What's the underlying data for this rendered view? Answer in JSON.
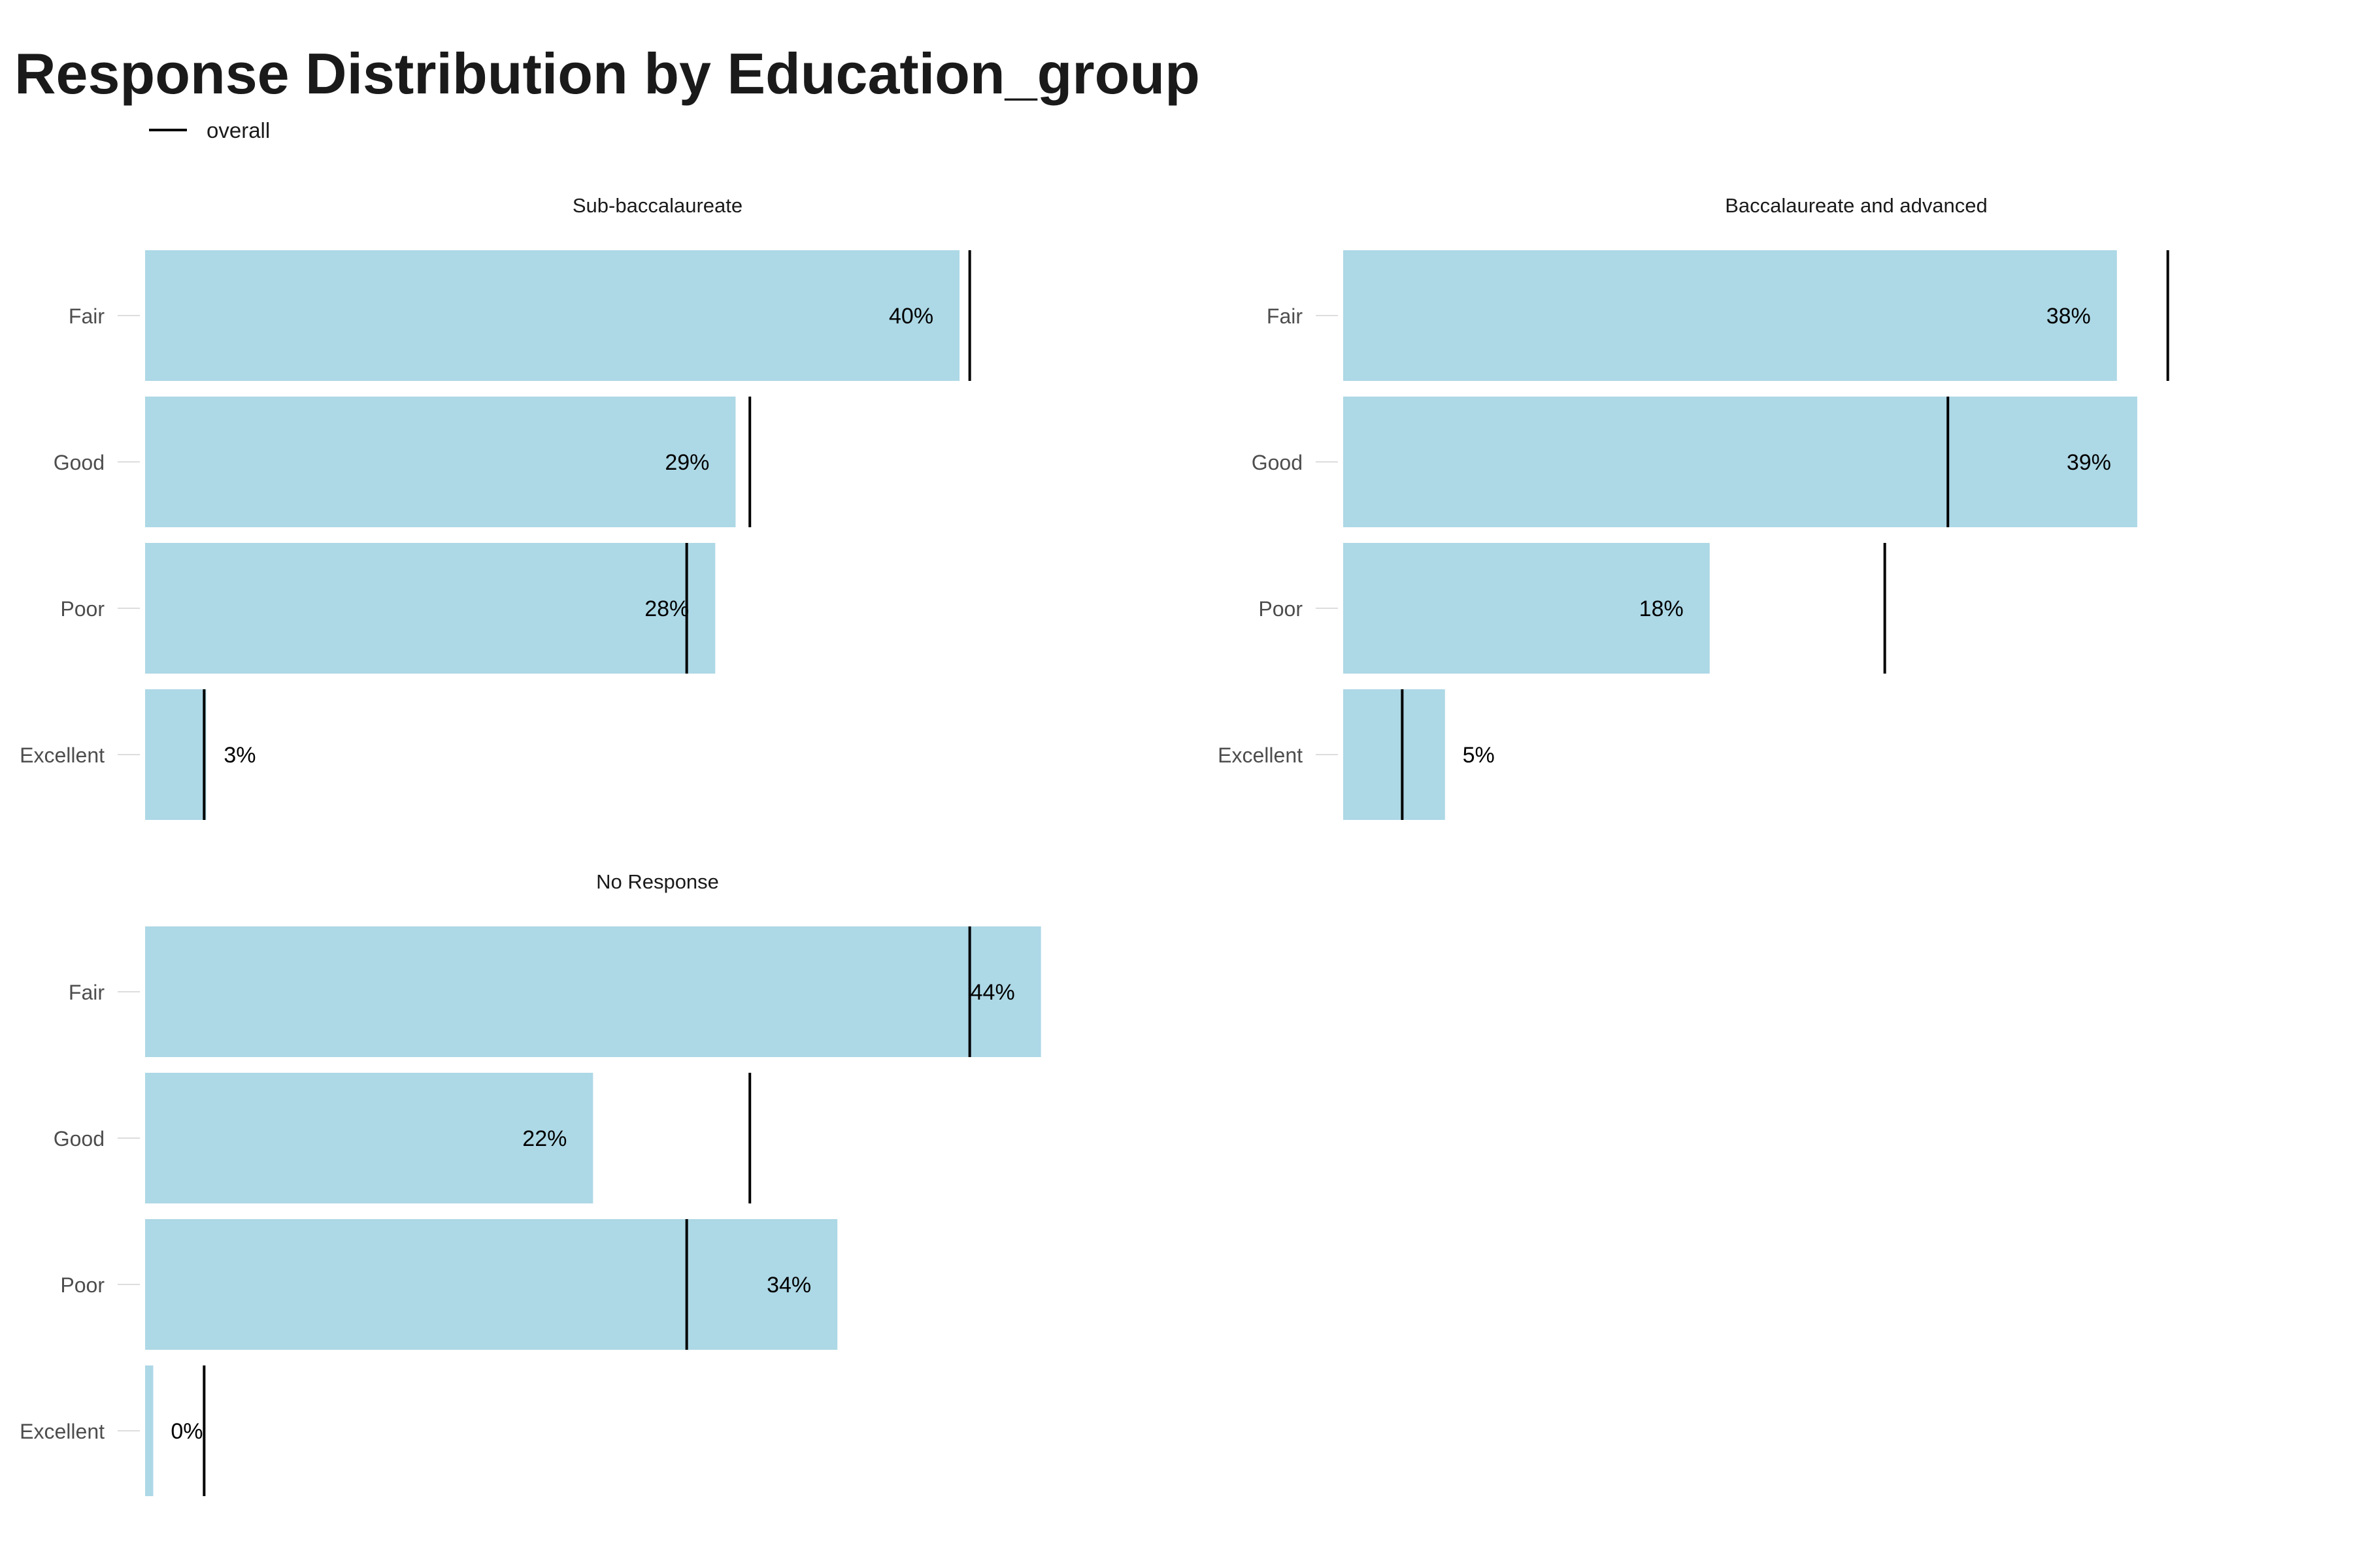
{
  "chart_data": {
    "type": "bar",
    "orientation": "horizontal",
    "title": "Response Distribution by Education_group",
    "legend": {
      "label": "overall",
      "position": "top-left"
    },
    "categories": [
      "Fair",
      "Good",
      "Poor",
      "Excellent"
    ],
    "overall": [
      0.405,
      0.297,
      0.266,
      0.029
    ],
    "xlim": [
      0,
      0.46
    ],
    "facets": [
      {
        "name": "Sub-baccalaureate",
        "values": [
          0.4,
          0.29,
          0.28,
          0.03
        ],
        "labels": [
          "40%",
          "29%",
          "28%",
          "3%"
        ]
      },
      {
        "name": "Baccalaureate and advanced",
        "values": [
          0.38,
          0.39,
          0.18,
          0.05
        ],
        "labels": [
          "38%",
          "39%",
          "18%",
          "5%"
        ]
      },
      {
        "name": "No Response",
        "values": [
          0.44,
          0.22,
          0.34,
          0.004
        ],
        "labels": [
          "44%",
          "22%",
          "34%",
          "0%"
        ]
      }
    ],
    "colors": {
      "bar": "#ADD8E6",
      "reference": "#000000",
      "text": "#000000",
      "axis_text": "#4d4d4d",
      "tick": "#dddddd"
    }
  }
}
